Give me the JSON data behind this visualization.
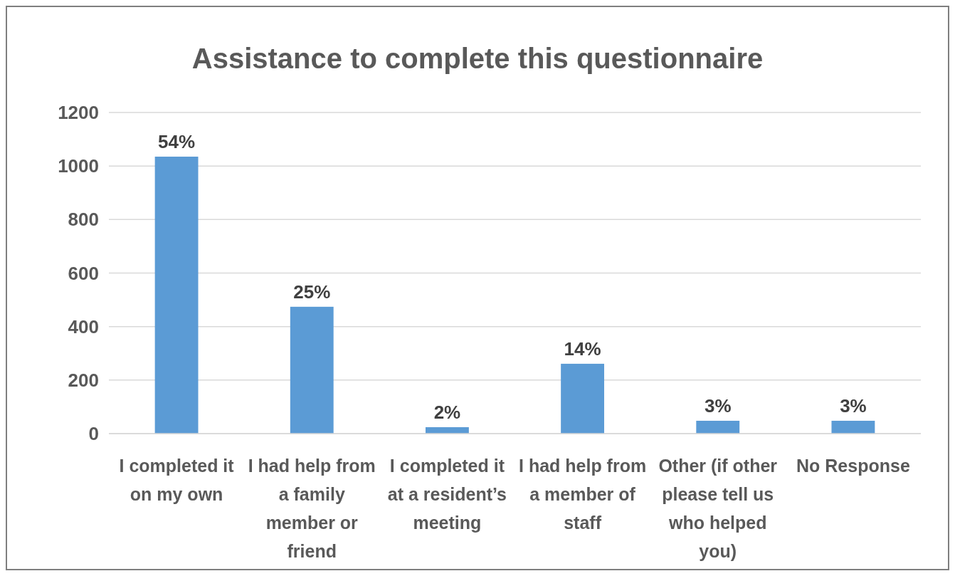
{
  "chart_data": {
    "type": "bar",
    "title": "Assistance to complete this questionnaire",
    "categories": [
      "I completed it on my own",
      "I had help from a family member or friend",
      "I completed it at a resident’s meeting",
      "I had help from a member of staff",
      "Other (if other please tell us who helped you)",
      "No Response"
    ],
    "values": [
      1035,
      474,
      24,
      261,
      48,
      48
    ],
    "annotations": [
      {
        "text": "54%",
        "x": "I completed it on my own",
        "y": 1035
      },
      {
        "text": "25%",
        "x": "I had help from a family member or friend",
        "y": 474
      },
      {
        "text": "2%",
        "x": "I completed it at a resident’s meeting",
        "y": 24
      },
      {
        "text": "14%",
        "x": "I had help from a member of staff",
        "y": 261
      },
      {
        "text": "3%",
        "x": "Other (if other please tell us who helped you)",
        "y": 48
      },
      {
        "text": "3%",
        "x": "No Response",
        "y": 48
      }
    ],
    "color": "#5b9bd5",
    "ylim": [
      0,
      1200
    ],
    "yticks": [
      0,
      200,
      400,
      600,
      800,
      1000,
      1200
    ],
    "grid": "y"
  }
}
